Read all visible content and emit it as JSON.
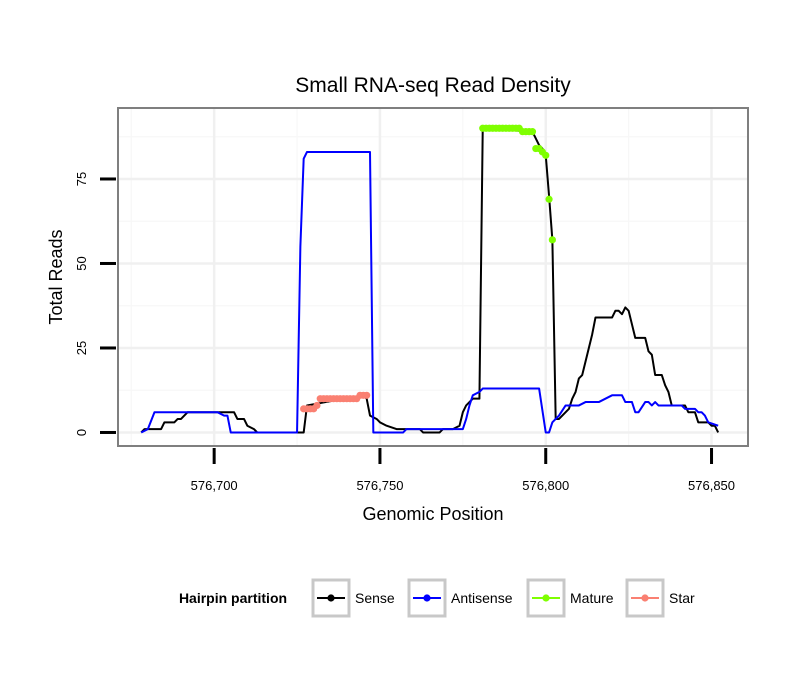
{
  "chart_data": {
    "type": "line",
    "title": "Small RNA-seq Read Density",
    "xlabel": "Genomic Position",
    "ylabel": "Total Reads",
    "xlim": [
      576671,
      576861
    ],
    "ylim": [
      -4,
      96
    ],
    "x_ticks": [
      576700,
      576750,
      576800,
      576850
    ],
    "x_tick_labels": [
      "576,700",
      "576,750",
      "576,800",
      "576,850"
    ],
    "y_ticks": [
      0,
      25,
      50,
      75
    ],
    "y_tick_labels": [
      "0",
      "25",
      "50",
      "75"
    ],
    "grid": true,
    "legend": {
      "title": "Hairpin partition",
      "position": "bottom",
      "entries": [
        {
          "name": "Sense",
          "color": "#000000"
        },
        {
          "name": "Antisense",
          "color": "#0000ff"
        },
        {
          "name": "Mature",
          "color": "#7fff00"
        },
        {
          "name": "Star",
          "color": "#fa8072"
        }
      ]
    },
    "series": [
      {
        "name": "Sense",
        "color": "#000000",
        "markers": false,
        "points": [
          [
            576678,
            0
          ],
          [
            576679,
            1
          ],
          [
            576684,
            1
          ],
          [
            576685,
            3
          ],
          [
            576688,
            3
          ],
          [
            576689,
            4
          ],
          [
            576690,
            4
          ],
          [
            576691,
            5
          ],
          [
            576692,
            6
          ],
          [
            576697,
            6
          ],
          [
            576698,
            6
          ],
          [
            576706,
            6
          ],
          [
            576707,
            4
          ],
          [
            576709,
            4
          ],
          [
            576710,
            2
          ],
          [
            576712,
            1
          ],
          [
            576713,
            0
          ],
          [
            576727,
            0
          ],
          [
            576728,
            8
          ],
          [
            576745,
            11
          ],
          [
            576746,
            10
          ],
          [
            576747,
            5
          ],
          [
            576749,
            4
          ],
          [
            576750,
            3
          ],
          [
            576752,
            2
          ],
          [
            576755,
            1
          ],
          [
            576762,
            1
          ],
          [
            576763,
            0
          ],
          [
            576768,
            0
          ],
          [
            576769,
            1
          ],
          [
            576772,
            1
          ],
          [
            576774,
            2
          ],
          [
            576775,
            6
          ],
          [
            576776,
            8
          ],
          [
            576777,
            9
          ],
          [
            576778,
            10
          ],
          [
            576780,
            10
          ],
          [
            576781,
            90
          ],
          [
            576796,
            89
          ],
          [
            576798,
            85
          ],
          [
            576799,
            84
          ],
          [
            576800,
            82
          ],
          [
            576801,
            70
          ],
          [
            576802,
            57
          ],
          [
            576803,
            4
          ],
          [
            576804,
            4
          ],
          [
            576805,
            5
          ],
          [
            576806,
            6
          ],
          [
            576807,
            7
          ],
          [
            576808,
            10
          ],
          [
            576809,
            12
          ],
          [
            576810,
            16
          ],
          [
            576811,
            17
          ],
          [
            576812,
            21
          ],
          [
            576813,
            25
          ],
          [
            576814,
            29
          ],
          [
            576815,
            34
          ],
          [
            576820,
            34
          ],
          [
            576821,
            36
          ],
          [
            576822,
            36
          ],
          [
            576823,
            35
          ],
          [
            576824,
            37
          ],
          [
            576825,
            36
          ],
          [
            576826,
            32
          ],
          [
            576827,
            28
          ],
          [
            576830,
            28
          ],
          [
            576831,
            24
          ],
          [
            576832,
            23
          ],
          [
            576833,
            17
          ],
          [
            576835,
            17
          ],
          [
            576836,
            14
          ],
          [
            576837,
            12
          ],
          [
            576838,
            8
          ],
          [
            576842,
            8
          ],
          [
            576843,
            6
          ],
          [
            576845,
            6
          ],
          [
            576846,
            3
          ],
          [
            576849,
            3
          ],
          [
            576850,
            2
          ],
          [
            576851,
            2
          ],
          [
            576852,
            0
          ]
        ]
      },
      {
        "name": "Antisense",
        "color": "#0000ff",
        "markers": false,
        "points": [
          [
            576678,
            0
          ],
          [
            576680,
            1
          ],
          [
            576682,
            6
          ],
          [
            576701,
            6
          ],
          [
            576703,
            5
          ],
          [
            576704,
            5
          ],
          [
            576705,
            0
          ],
          [
            576713,
            0
          ],
          [
            576725,
            0
          ],
          [
            576726,
            55
          ],
          [
            576727,
            81
          ],
          [
            576728,
            83
          ],
          [
            576747,
            83
          ],
          [
            576748,
            0
          ],
          [
            576757,
            0
          ],
          [
            576758,
            1
          ],
          [
            576775,
            1
          ],
          [
            576776,
            4
          ],
          [
            576777,
            8
          ],
          [
            576778,
            11
          ],
          [
            576780,
            12
          ],
          [
            576781,
            13
          ],
          [
            576798,
            13
          ],
          [
            576800,
            0
          ],
          [
            576801,
            0
          ],
          [
            576802,
            3
          ],
          [
            576804,
            5
          ],
          [
            576806,
            8
          ],
          [
            576810,
            8
          ],
          [
            576812,
            9
          ],
          [
            576816,
            9
          ],
          [
            576818,
            10
          ],
          [
            576820,
            11
          ],
          [
            576823,
            11
          ],
          [
            576824,
            9
          ],
          [
            576826,
            9
          ],
          [
            576827,
            6
          ],
          [
            576828,
            6
          ],
          [
            576830,
            9
          ],
          [
            576831,
            9
          ],
          [
            576832,
            8
          ],
          [
            576833,
            9
          ],
          [
            576834,
            8
          ],
          [
            576841,
            8
          ],
          [
            576842,
            7
          ],
          [
            576845,
            7
          ],
          [
            576846,
            6
          ],
          [
            576847,
            6
          ],
          [
            576848,
            5
          ],
          [
            576849,
            3
          ],
          [
            576852,
            2
          ]
        ]
      },
      {
        "name": "Mature",
        "color": "#7fff00",
        "markers": true,
        "line": false,
        "points": [
          [
            576781,
            90
          ],
          [
            576782,
            90
          ],
          [
            576783,
            90
          ],
          [
            576784,
            90
          ],
          [
            576785,
            90
          ],
          [
            576786,
            90
          ],
          [
            576787,
            90
          ],
          [
            576788,
            90
          ],
          [
            576789,
            90
          ],
          [
            576790,
            90
          ],
          [
            576791,
            90
          ],
          [
            576792,
            90
          ],
          [
            576793,
            89
          ],
          [
            576794,
            89
          ],
          [
            576795,
            89
          ],
          [
            576796,
            89
          ],
          [
            576797,
            84
          ],
          [
            576798,
            84
          ],
          [
            576799,
            83
          ],
          [
            576800,
            82
          ],
          [
            576801,
            69
          ],
          [
            576802,
            57
          ]
        ]
      },
      {
        "name": "Star",
        "color": "#fa8072",
        "markers": true,
        "line": false,
        "points": [
          [
            576727,
            7
          ],
          [
            576728,
            7
          ],
          [
            576729,
            7
          ],
          [
            576730,
            7
          ],
          [
            576731,
            8
          ],
          [
            576732,
            10
          ],
          [
            576733,
            10
          ],
          [
            576734,
            10
          ],
          [
            576735,
            10
          ],
          [
            576736,
            10
          ],
          [
            576737,
            10
          ],
          [
            576738,
            10
          ],
          [
            576739,
            10
          ],
          [
            576740,
            10
          ],
          [
            576741,
            10
          ],
          [
            576742,
            10
          ],
          [
            576743,
            10
          ],
          [
            576744,
            11
          ],
          [
            576745,
            11
          ],
          [
            576746,
            11
          ]
        ]
      }
    ]
  }
}
